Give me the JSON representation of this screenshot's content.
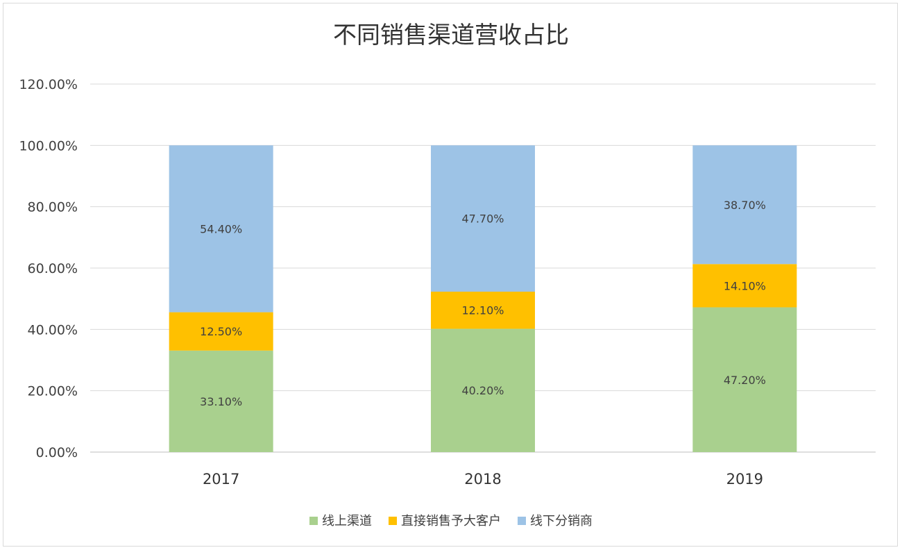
{
  "chart_data": {
    "type": "bar",
    "stacked": true,
    "title": "不同销售渠道营收占比",
    "categories": [
      "2017",
      "2018",
      "2019"
    ],
    "series": [
      {
        "name": "线上渠道",
        "color": "#a9d08e",
        "values": [
          33.1,
          40.2,
          47.2
        ],
        "labels": [
          "33.10%",
          "40.20%",
          "47.20%"
        ]
      },
      {
        "name": "直接销售予大客户",
        "color": "#ffc000",
        "values": [
          12.5,
          12.1,
          14.1
        ],
        "labels": [
          "12.50%",
          "12.10%",
          "14.10%"
        ]
      },
      {
        "name": "线下分销商",
        "color": "#9dc3e6",
        "values": [
          54.4,
          47.7,
          38.7
        ],
        "labels": [
          "54.40%",
          "47.70%",
          "38.70%"
        ]
      }
    ],
    "y_ticks": [
      "0.00%",
      "20.00%",
      "40.00%",
      "60.00%",
      "80.00%",
      "100.00%",
      "120.00%"
    ],
    "ylim": [
      0,
      120
    ],
    "grid": true,
    "legend_position": "bottom"
  }
}
